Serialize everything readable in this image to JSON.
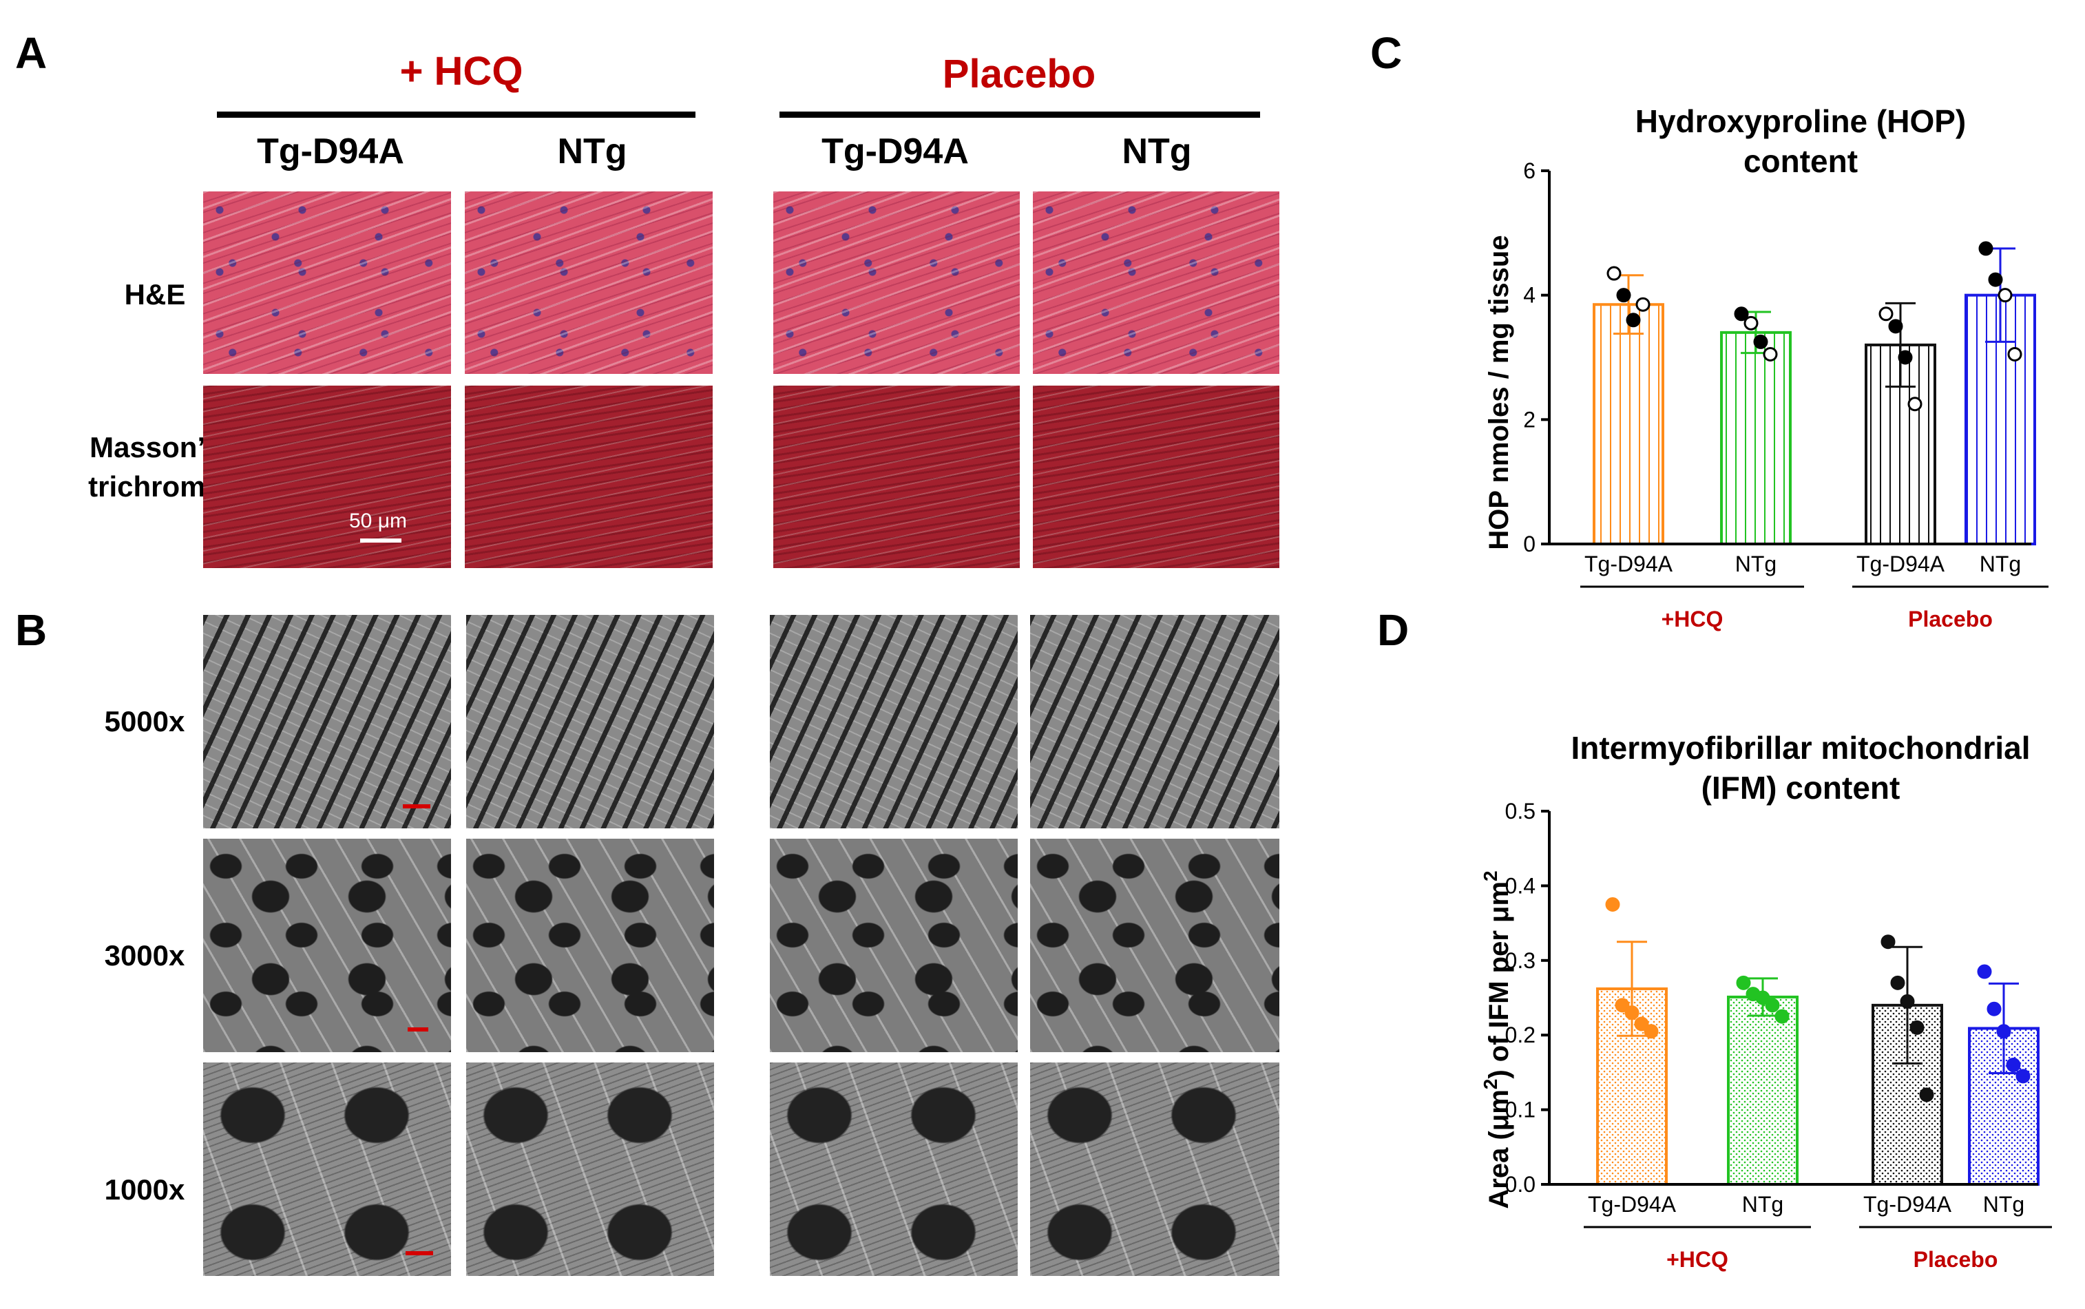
{
  "panel_a": {
    "letter": "A",
    "groups": [
      "+ HCQ",
      "Placebo"
    ],
    "columns": [
      "Tg-D94A",
      "NTg",
      "Tg-D94A",
      "NTg"
    ],
    "rows": [
      {
        "label_lines": [
          "H&E"
        ]
      },
      {
        "label_lines": [
          "Masson’s",
          "trichrome"
        ]
      }
    ],
    "scale_bar_label": "50 μm",
    "colors": {
      "group_title": "#c00000"
    }
  },
  "panel_b": {
    "letter": "B",
    "rows": [
      "5000x",
      "3000x",
      "1000x"
    ],
    "scale_bar_color": "#d40000"
  },
  "panel_c": {
    "letter": "C",
    "chart_data": {
      "type": "bar",
      "title_lines": [
        "Hydroxyproline (HOP)",
        "content"
      ],
      "ylabel": "HOP nmoles / mg tissue",
      "ylim": [
        0,
        6
      ],
      "yticks": [
        0,
        2,
        4,
        6
      ],
      "categories": [
        "Tg-D94A",
        "NTg",
        "Tg-D94A",
        "NTg"
      ],
      "groups": [
        {
          "label": "+HCQ",
          "members": [
            0,
            1
          ]
        },
        {
          "label": "Placebo",
          "members": [
            2,
            3
          ]
        }
      ],
      "values": [
        3.85,
        3.4,
        3.2,
        4.0
      ],
      "error": [
        0.47,
        0.33,
        0.67,
        0.75
      ],
      "colors": [
        "#ff8c1a",
        "#22c322",
        "#111111",
        "#1a1ae6"
      ],
      "points": [
        [
          {
            "y": 4.35,
            "filled": false
          },
          {
            "y": 4.0,
            "filled": true
          },
          {
            "y": 3.6,
            "filled": true
          },
          {
            "y": 3.85,
            "filled": false
          }
        ],
        [
          {
            "y": 3.7,
            "filled": true
          },
          {
            "y": 3.55,
            "filled": false
          },
          {
            "y": 3.25,
            "filled": true
          },
          {
            "y": 3.05,
            "filled": false
          }
        ],
        [
          {
            "y": 3.7,
            "filled": false
          },
          {
            "y": 3.5,
            "filled": true
          },
          {
            "y": 3.0,
            "filled": true
          },
          {
            "y": 2.25,
            "filled": false
          }
        ],
        [
          {
            "y": 4.75,
            "filled": true
          },
          {
            "y": 4.25,
            "filled": true
          },
          {
            "y": 4.0,
            "filled": false
          },
          {
            "y": 3.05,
            "filled": false
          }
        ]
      ],
      "hatch": "vertical-lines"
    }
  },
  "panel_d": {
    "letter": "D",
    "chart_data": {
      "type": "bar",
      "title_lines": [
        "Intermyofibrillar mitochondrial",
        "(IFM) content"
      ],
      "ylabel_parts": [
        "Area (μm",
        "2",
        ") of IFM per μm",
        "2"
      ],
      "ylim": [
        0,
        0.5
      ],
      "yticks": [
        0.0,
        0.1,
        0.2,
        0.3,
        0.4,
        0.5
      ],
      "ytick_labels": [
        "0.0",
        "0.1",
        "0.2",
        "0.3",
        "0.4",
        "0.5"
      ],
      "categories": [
        "Tg-D94A",
        "NTg",
        "Tg-D94A",
        "NTg"
      ],
      "groups": [
        {
          "label": "+HCQ",
          "members": [
            0,
            1
          ]
        },
        {
          "label": "Placebo",
          "members": [
            2,
            3
          ]
        }
      ],
      "values": [
        0.262,
        0.251,
        0.24,
        0.209
      ],
      "error": [
        0.063,
        0.025,
        0.078,
        0.06
      ],
      "colors": [
        "#ff8c1a",
        "#22c322",
        "#111111",
        "#1a1ae6"
      ],
      "points": [
        [
          0.375,
          0.24,
          0.23,
          0.215,
          0.205
        ],
        [
          0.27,
          0.255,
          0.25,
          0.24,
          0.225
        ],
        [
          0.325,
          0.27,
          0.245,
          0.21,
          0.12
        ],
        [
          0.285,
          0.235,
          0.205,
          0.16,
          0.145
        ]
      ],
      "hatch": "dots"
    }
  }
}
